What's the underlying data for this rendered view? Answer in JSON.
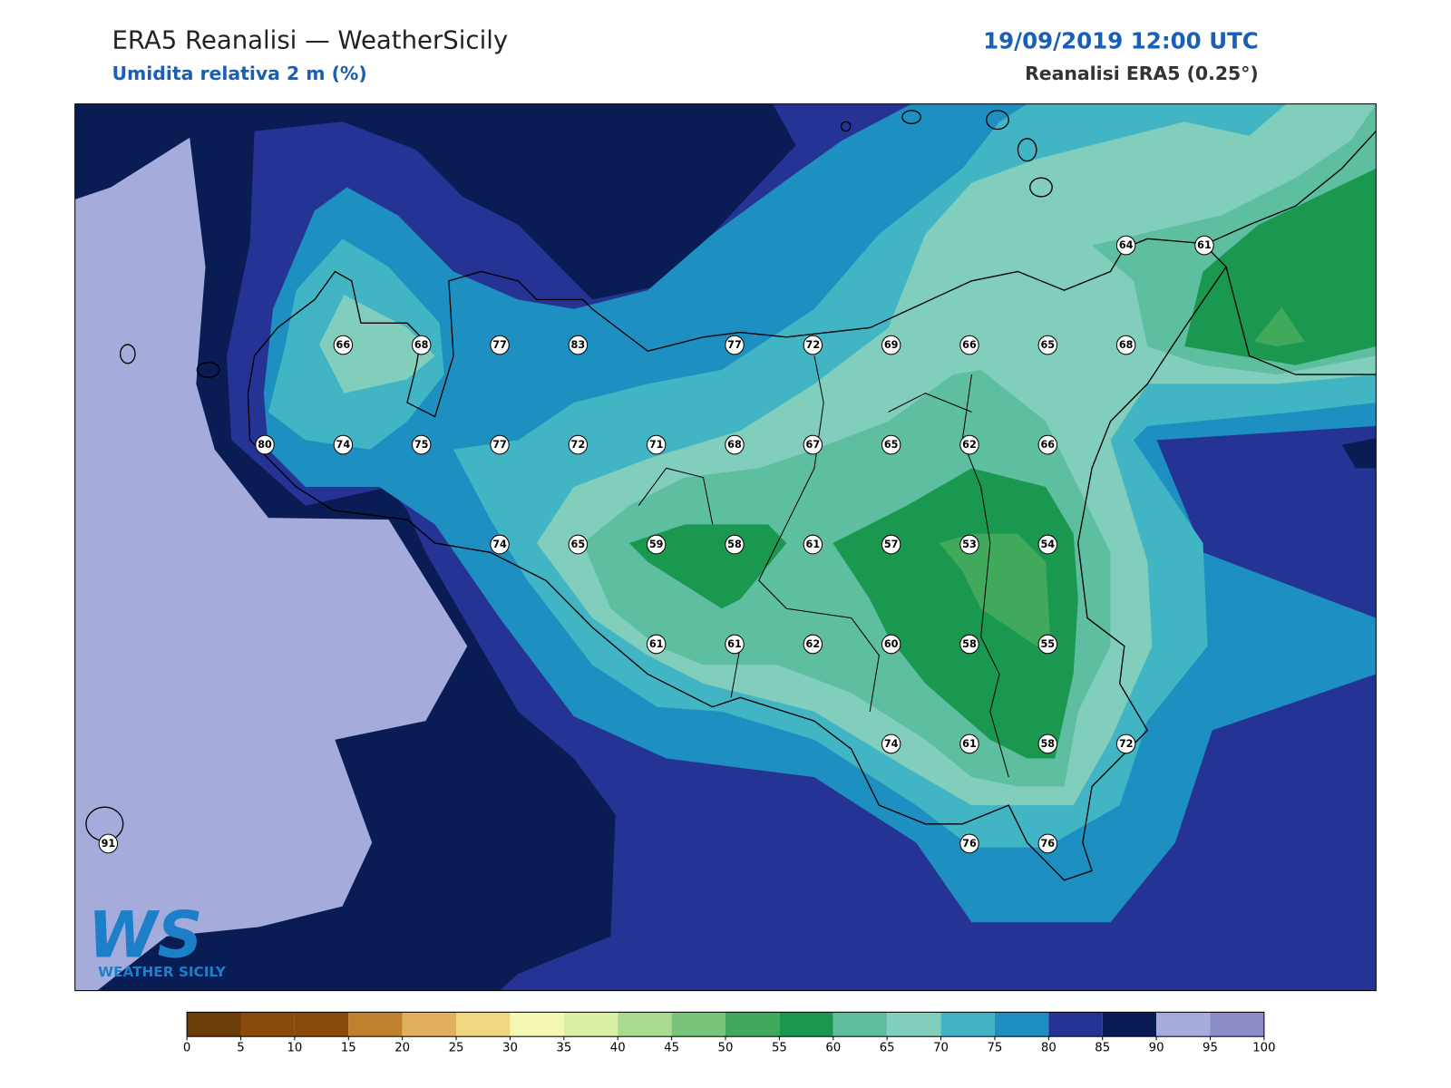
{
  "header": {
    "title": "ERA5 Reanalisi — WeatherSicily",
    "subtitle": "Umidita relativa 2 m (%)",
    "datetime": "19/09/2019 12:00 UTC",
    "source": "Reanalisi ERA5 (0.25°)"
  },
  "stations": [
    64,
    61,
    66,
    68,
    77,
    83,
    77,
    72,
    69,
    66,
    65,
    68,
    80,
    74,
    75,
    77,
    72,
    71,
    68,
    67,
    65,
    62,
    66,
    74,
    65,
    59,
    58,
    61,
    57,
    53,
    54,
    61,
    61,
    62,
    60,
    58,
    55,
    74,
    61,
    58,
    72,
    91,
    76,
    76
  ],
  "colorbar": {
    "ticks": [
      0,
      5,
      10,
      15,
      20,
      25,
      30,
      35,
      40,
      45,
      50,
      55,
      60,
      65,
      70,
      75,
      80,
      85,
      90,
      95,
      100
    ],
    "colors": [
      "#6b3c08",
      "#8a4a0c",
      "#8a4a0c",
      "#c0812e",
      "#e1b05c",
      "#f0d67e",
      "#f5f8b4",
      "#d8efa5",
      "#aadc8f",
      "#78c47a",
      "#40a95b",
      "#1a9850",
      "#5ebea0",
      "#80cebb",
      "#42b5c5",
      "#1d8fc0",
      "#253494",
      "#0a1c54",
      "#a5acdc",
      "#8b8cc8"
    ]
  },
  "logo": {
    "mark": "WS",
    "text": "WEATHER SICILY"
  }
}
